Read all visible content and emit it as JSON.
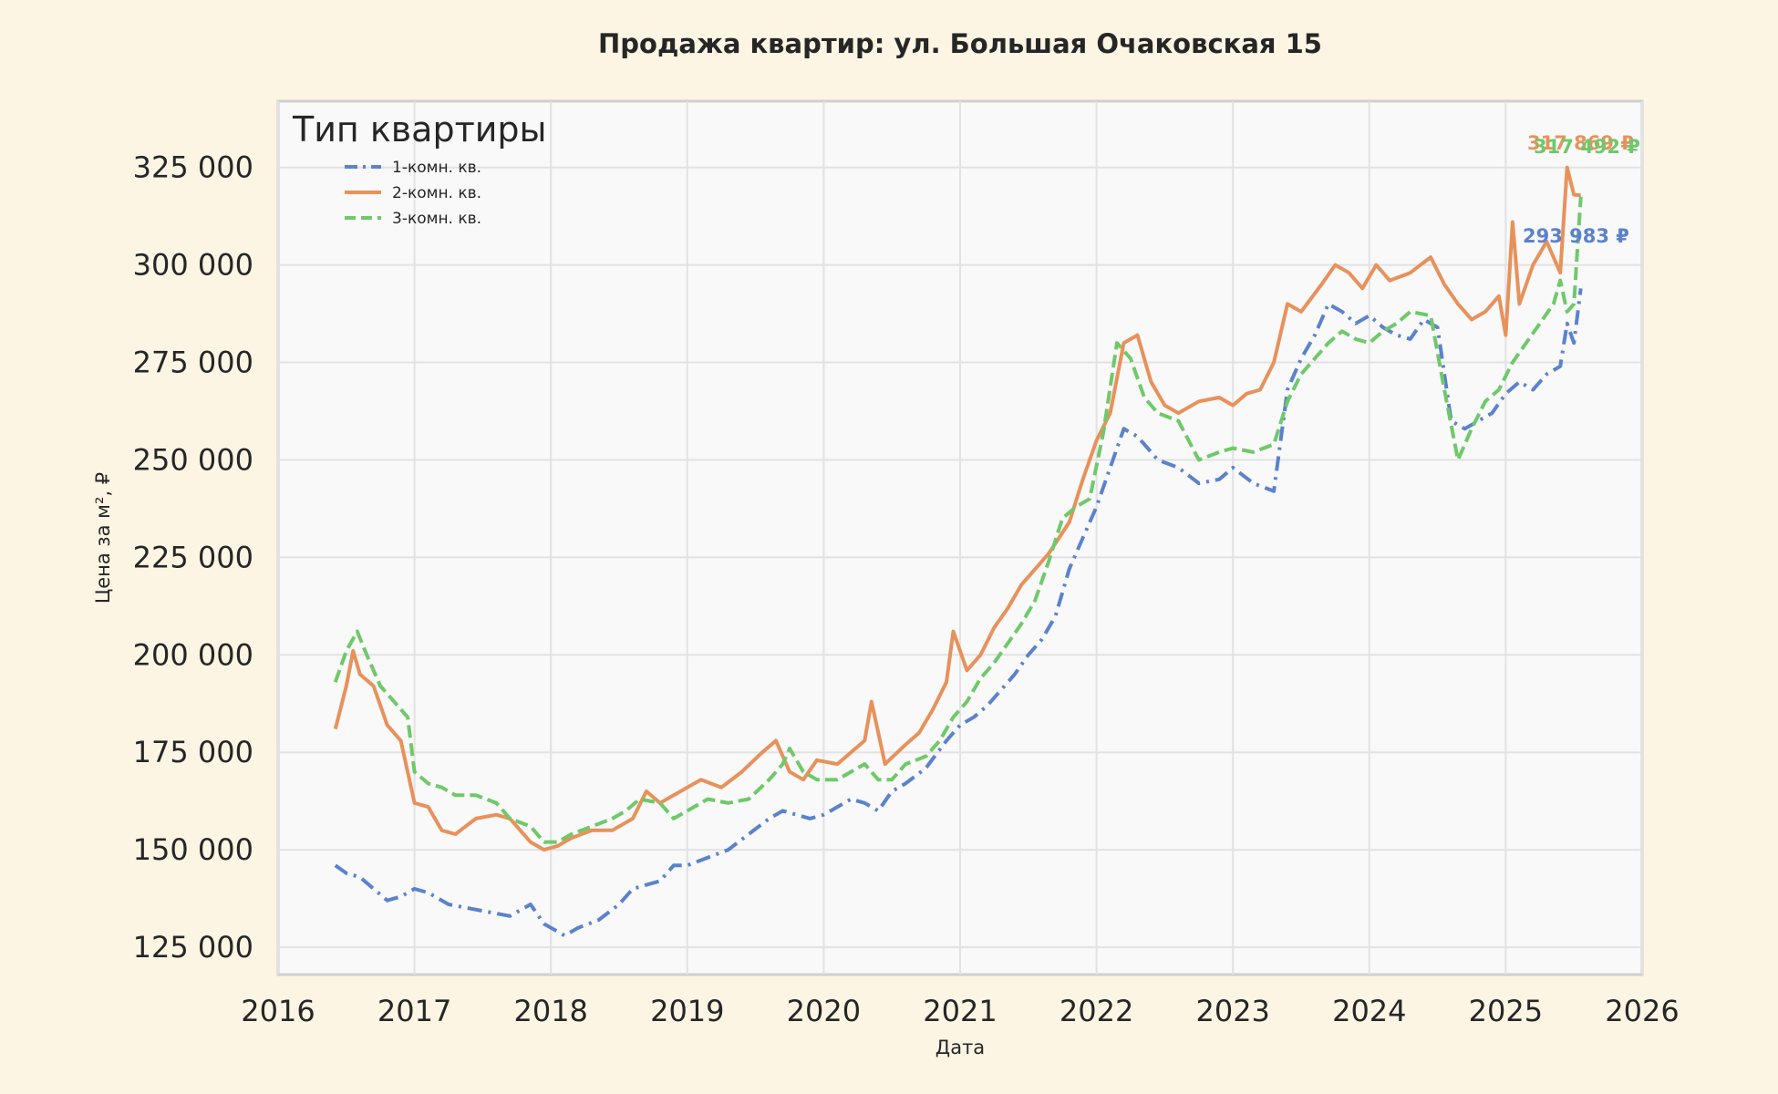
{
  "chart_data": {
    "type": "line",
    "title": "Продажа квартир: ул. Большая Очаковская 15",
    "xlabel": "Дата",
    "ylabel": "Цена за м², ₽",
    "xlim": [
      2016,
      2026
    ],
    "ylim": [
      118000,
      342000
    ],
    "x_ticks": [
      "2016",
      "2017",
      "2018",
      "2019",
      "2020",
      "2021",
      "2022",
      "2023",
      "2024",
      "2025",
      "2026"
    ],
    "y_ticks": [
      "125 000",
      "150 000",
      "175 000",
      "200 000",
      "225 000",
      "250 000",
      "275 000",
      "300 000",
      "325 000"
    ],
    "y_tick_values": [
      125000,
      150000,
      175000,
      200000,
      225000,
      250000,
      275000,
      300000,
      325000
    ],
    "grid": true,
    "legend": {
      "title": "Тип квартиры",
      "placement": "top-left"
    },
    "series": [
      {
        "name": "1-комн. кв.",
        "color": "#5b82cc",
        "dash": "dash-dot",
        "end_label": "293 983 ₽",
        "x": [
          2016.42,
          2016.5,
          2016.6,
          2016.7,
          2016.8,
          2016.9,
          2017.0,
          2017.1,
          2017.25,
          2017.4,
          2017.55,
          2017.7,
          2017.85,
          2017.95,
          2018.0,
          2018.1,
          2018.2,
          2018.35,
          2018.5,
          2018.6,
          2018.7,
          2018.8,
          2018.9,
          2019.0,
          2019.15,
          2019.3,
          2019.45,
          2019.6,
          2019.7,
          2019.8,
          2019.9,
          2020.0,
          2020.1,
          2020.2,
          2020.3,
          2020.4,
          2020.5,
          2020.6,
          2020.75,
          2020.9,
          2021.0,
          2021.1,
          2021.2,
          2021.3,
          2021.4,
          2021.5,
          2021.6,
          2021.7,
          2021.8,
          2021.9,
          2022.0,
          2022.1,
          2022.2,
          2022.3,
          2022.45,
          2022.6,
          2022.75,
          2022.9,
          2023.0,
          2023.15,
          2023.3,
          2023.4,
          2023.5,
          2023.6,
          2023.7,
          2023.8,
          2023.9,
          2024.0,
          2024.1,
          2024.2,
          2024.3,
          2024.4,
          2024.5,
          2024.6,
          2024.7,
          2024.8,
          2024.9,
          2025.0,
          2025.1,
          2025.2,
          2025.3,
          2025.4,
          2025.45,
          2025.5,
          2025.55
        ],
        "values": [
          146000,
          144000,
          143000,
          140000,
          137000,
          138000,
          140000,
          139000,
          136000,
          135000,
          134000,
          133000,
          136000,
          131000,
          130000,
          128000,
          130000,
          132000,
          136000,
          140000,
          141000,
          142000,
          146000,
          146000,
          148000,
          150000,
          154000,
          158000,
          160000,
          159000,
          158000,
          159000,
          161000,
          163000,
          162000,
          160000,
          165000,
          167000,
          171000,
          178000,
          182000,
          184000,
          187000,
          191000,
          195000,
          200000,
          204000,
          210000,
          222000,
          230000,
          238000,
          248000,
          258000,
          256000,
          250000,
          248000,
          244000,
          245000,
          248000,
          244000,
          242000,
          268000,
          276000,
          282000,
          290000,
          288000,
          285000,
          287000,
          284000,
          282000,
          281000,
          286000,
          284000,
          260000,
          258000,
          260000,
          262000,
          267000,
          270000,
          268000,
          272000,
          274000,
          285000,
          280000,
          293983
        ]
      },
      {
        "name": "2-комн. кв.",
        "color": "#e8915b",
        "dash": "solid",
        "end_label": "317 869 ₽",
        "x": [
          2016.42,
          2016.5,
          2016.55,
          2016.6,
          2016.7,
          2016.8,
          2016.9,
          2016.95,
          2017.0,
          2017.1,
          2017.2,
          2017.3,
          2017.45,
          2017.6,
          2017.7,
          2017.85,
          2017.95,
          2018.05,
          2018.15,
          2018.3,
          2018.45,
          2018.6,
          2018.7,
          2018.8,
          2018.95,
          2019.1,
          2019.25,
          2019.4,
          2019.55,
          2019.65,
          2019.75,
          2019.85,
          2019.95,
          2020.1,
          2020.2,
          2020.3,
          2020.35,
          2020.45,
          2020.6,
          2020.7,
          2020.8,
          2020.9,
          2020.95,
          2021.05,
          2021.15,
          2021.25,
          2021.35,
          2021.45,
          2021.55,
          2021.65,
          2021.8,
          2021.9,
          2022.0,
          2022.1,
          2022.2,
          2022.3,
          2022.4,
          2022.5,
          2022.6,
          2022.75,
          2022.9,
          2023.0,
          2023.1,
          2023.2,
          2023.3,
          2023.4,
          2023.5,
          2023.65,
          2023.75,
          2023.85,
          2023.95,
          2024.05,
          2024.15,
          2024.3,
          2024.45,
          2024.55,
          2024.65,
          2024.75,
          2024.85,
          2024.95,
          2025.0,
          2025.05,
          2025.1,
          2025.2,
          2025.3,
          2025.4,
          2025.45,
          2025.5,
          2025.55
        ],
        "values": [
          181000,
          192000,
          201000,
          195000,
          192000,
          182000,
          178000,
          170000,
          162000,
          161000,
          155000,
          154000,
          158000,
          159000,
          158000,
          152000,
          150000,
          151000,
          153000,
          155000,
          155000,
          158000,
          165000,
          162000,
          165000,
          168000,
          166000,
          170000,
          175000,
          178000,
          170000,
          168000,
          173000,
          172000,
          175000,
          178000,
          188000,
          172000,
          177000,
          180000,
          186000,
          193000,
          206000,
          196000,
          200000,
          207000,
          212000,
          218000,
          222000,
          226000,
          234000,
          245000,
          255000,
          262000,
          280000,
          282000,
          270000,
          264000,
          262000,
          265000,
          266000,
          264000,
          267000,
          268000,
          275000,
          290000,
          288000,
          295000,
          300000,
          298000,
          294000,
          300000,
          296000,
          298000,
          302000,
          295000,
          290000,
          286000,
          288000,
          292000,
          282000,
          311000,
          290000,
          300000,
          306000,
          298000,
          325000,
          318000,
          317869
        ]
      },
      {
        "name": "3-комн. кв.",
        "color": "#6fc96a",
        "dash": "dashed",
        "end_label": "317 492 ₽",
        "x": [
          2016.42,
          2016.5,
          2016.58,
          2016.65,
          2016.75,
          2016.85,
          2016.95,
          2017.0,
          2017.1,
          2017.2,
          2017.3,
          2017.45,
          2017.6,
          2017.7,
          2017.85,
          2017.95,
          2018.05,
          2018.15,
          2018.3,
          2018.45,
          2018.55,
          2018.65,
          2018.8,
          2018.9,
          2019.0,
          2019.15,
          2019.3,
          2019.45,
          2019.6,
          2019.7,
          2019.75,
          2019.85,
          2019.95,
          2020.1,
          2020.2,
          2020.3,
          2020.4,
          2020.5,
          2020.6,
          2020.75,
          2020.85,
          2020.95,
          2021.05,
          2021.15,
          2021.25,
          2021.35,
          2021.45,
          2021.55,
          2021.65,
          2021.75,
          2021.85,
          2021.95,
          2022.05,
          2022.15,
          2022.25,
          2022.35,
          2022.45,
          2022.6,
          2022.75,
          2022.9,
          2023.0,
          2023.15,
          2023.3,
          2023.4,
          2023.5,
          2023.6,
          2023.7,
          2023.8,
          2023.9,
          2024.0,
          2024.1,
          2024.2,
          2024.3,
          2024.45,
          2024.55,
          2024.65,
          2024.75,
          2024.85,
          2024.95,
          2025.05,
          2025.15,
          2025.25,
          2025.35,
          2025.4,
          2025.45,
          2025.5,
          2025.55
        ],
        "values": [
          193000,
          201000,
          206000,
          200000,
          192000,
          188000,
          184000,
          170000,
          167000,
          166000,
          164000,
          164000,
          162000,
          158000,
          156000,
          152000,
          152000,
          154000,
          156000,
          158000,
          160000,
          163000,
          162000,
          158000,
          160000,
          163000,
          162000,
          163000,
          168000,
          172000,
          176000,
          170000,
          168000,
          168000,
          170000,
          172000,
          168000,
          168000,
          172000,
          174000,
          178000,
          184000,
          188000,
          194000,
          198000,
          203000,
          208000,
          214000,
          224000,
          235000,
          238000,
          240000,
          257000,
          280000,
          276000,
          266000,
          262000,
          260000,
          250000,
          252000,
          253000,
          252000,
          254000,
          265000,
          272000,
          276000,
          280000,
          283000,
          281000,
          280000,
          283000,
          285000,
          288000,
          287000,
          268000,
          250000,
          258000,
          265000,
          268000,
          275000,
          280000,
          285000,
          290000,
          296000,
          288000,
          290000,
          317492
        ]
      }
    ]
  }
}
